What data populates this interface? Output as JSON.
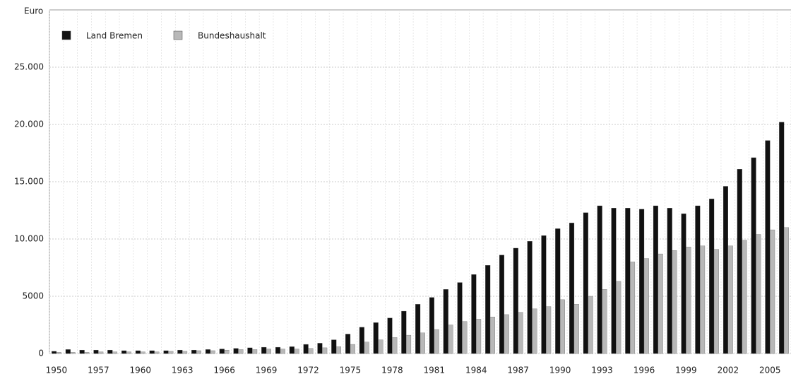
{
  "chart_data": {
    "type": "bar",
    "y_label": "Euro",
    "categories": [
      "1950",
      null,
      null,
      "1957",
      null,
      null,
      "1960",
      null,
      null,
      "1963",
      null,
      null,
      "1966",
      null,
      null,
      "1969",
      null,
      null,
      "1972",
      null,
      null,
      "1975",
      null,
      null,
      "1978",
      null,
      null,
      "1981",
      null,
      null,
      "1984",
      null,
      null,
      "1987",
      null,
      null,
      "1990",
      null,
      null,
      "1993",
      null,
      null,
      "1996",
      null,
      null,
      "1999",
      null,
      null,
      "2002",
      null,
      null,
      "2005",
      null
    ],
    "series": [
      {
        "name": "Land Bremen",
        "color": "#111111",
        "values": [
          200,
          350,
          300,
          300,
          300,
          250,
          250,
          250,
          250,
          300,
          300,
          350,
          400,
          450,
          500,
          550,
          550,
          600,
          800,
          900,
          1200,
          1700,
          2300,
          2700,
          3100,
          3700,
          4300,
          4900,
          5600,
          6200,
          6900,
          7700,
          8600,
          9200,
          9800,
          10300,
          10900,
          11400,
          12300,
          12900,
          12700,
          12700,
          12600,
          12900,
          12700,
          12200,
          12900,
          13500,
          14600,
          16100,
          17100,
          18600,
          20200
        ]
      },
      {
        "name": "Bundeshaushalt",
        "color": "#b8b8b8",
        "values": [
          100,
          100,
          100,
          150,
          150,
          150,
          150,
          150,
          200,
          200,
          250,
          250,
          300,
          350,
          350,
          400,
          400,
          400,
          450,
          500,
          600,
          800,
          1000,
          1200,
          1400,
          1600,
          1800,
          2100,
          2500,
          2800,
          3000,
          3200,
          3400,
          3600,
          3900,
          4100,
          4700,
          4300,
          5000,
          5600,
          6300,
          8000,
          8300,
          8700,
          9000,
          9300,
          9400,
          9100,
          9400,
          9900,
          10400,
          10800,
          11000
        ]
      }
    ],
    "ylim": [
      0,
      30000
    ],
    "yticks": [
      0,
      5000,
      {
        "value": 10000,
        "label": "10.000"
      },
      {
        "value": 15000,
        "label": "15.000"
      },
      {
        "value": 20000,
        "label": "20.000"
      },
      {
        "value": 25000,
        "label": "25.000"
      }
    ],
    "grid": true,
    "legend": "upper left"
  }
}
